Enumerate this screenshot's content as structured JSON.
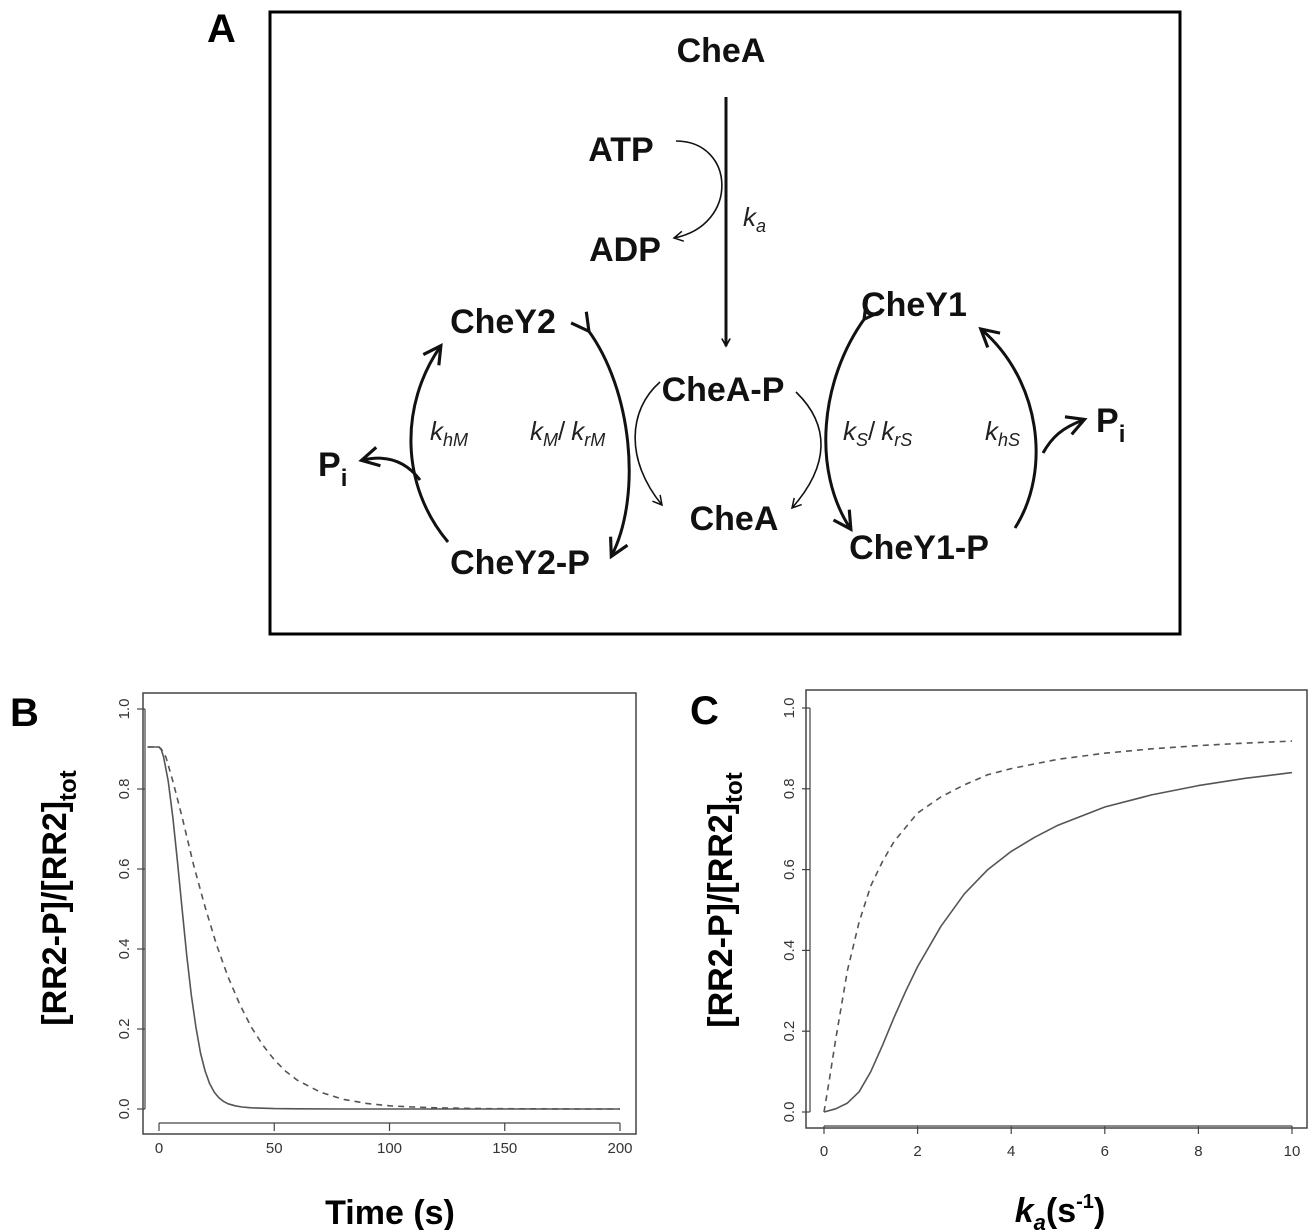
{
  "panel_a": {
    "letter": "A",
    "nodes": {
      "chea_top": "CheA",
      "atp": "ATP",
      "adp": "ADP",
      "chea_p": "CheA-P",
      "chea_mid": "CheA",
      "chey2": "CheY2",
      "chey2_p": "CheY2-P",
      "chey1": "CheY1",
      "chey1_p": "CheY1-P",
      "pi_left": "P",
      "pi_left_sub": "i",
      "pi_right": "P",
      "pi_right_sub": "i"
    },
    "rates": {
      "ka": "k",
      "ka_sub": "a",
      "khM": "k",
      "khM_sub": "hM",
      "kM": "k",
      "kM_sub": "M",
      "krM": "k",
      "krM_sub": "rM",
      "kS": "k",
      "kS_sub": "S",
      "krS": "k",
      "krS_sub": "rS",
      "khS": "k",
      "khS_sub": "hS",
      "slash": "/"
    }
  },
  "chart_data": [
    {
      "panel": "B",
      "type": "line",
      "xlabel": "Time (s)",
      "ylabel": "[RR2-P]/[RR2]",
      "ylabel_sub": "tot",
      "xlim": [
        0,
        200
      ],
      "ylim": [
        0,
        1.0
      ],
      "xticks": [
        "0",
        "50",
        "100",
        "150",
        "200"
      ],
      "yticks": [
        "0.0",
        "0.2",
        "0.4",
        "0.6",
        "0.8",
        "1.0"
      ],
      "series": [
        {
          "style": "solid",
          "x": [
            -5,
            0,
            1,
            2,
            4,
            6,
            8,
            10,
            12,
            14,
            16,
            18,
            20,
            22,
            24,
            26,
            28,
            30,
            33,
            36,
            40,
            45,
            50,
            60,
            80,
            100,
            150,
            200
          ],
          "y": [
            0.905,
            0.905,
            0.898,
            0.88,
            0.82,
            0.73,
            0.62,
            0.5,
            0.385,
            0.285,
            0.205,
            0.14,
            0.095,
            0.063,
            0.042,
            0.028,
            0.019,
            0.013,
            0.008,
            0.005,
            0.003,
            0.002,
            0.001,
            0.0005,
            0.0,
            0.0,
            0.0,
            0.0
          ]
        },
        {
          "style": "dashed",
          "x": [
            -5,
            0,
            1,
            3,
            6,
            10,
            15,
            20,
            25,
            30,
            35,
            40,
            45,
            50,
            55,
            60,
            70,
            80,
            90,
            100,
            110,
            120,
            140,
            160,
            180,
            200
          ],
          "y": [
            0.905,
            0.905,
            0.9,
            0.88,
            0.82,
            0.73,
            0.61,
            0.505,
            0.41,
            0.33,
            0.262,
            0.205,
            0.16,
            0.123,
            0.094,
            0.072,
            0.042,
            0.024,
            0.014,
            0.008,
            0.005,
            0.003,
            0.001,
            0.0005,
            0.0,
            0.0
          ]
        }
      ]
    },
    {
      "panel": "C",
      "type": "line",
      "xlabel": "k",
      "xlabel_sub": "a",
      "xlabel_rest": "(s",
      "xlabel_sup": "-1",
      "xlabel_end": ")",
      "ylabel": "[RR2-P]/[RR2]",
      "ylabel_sub": "tot",
      "xlim": [
        0,
        10
      ],
      "ylim": [
        0,
        1.0
      ],
      "xticks": [
        "0",
        "2",
        "4",
        "6",
        "8",
        "10"
      ],
      "yticks": [
        "0.0",
        "0.2",
        "0.4",
        "0.6",
        "0.8",
        "1.0"
      ],
      "series": [
        {
          "style": "solid",
          "x": [
            0,
            0.25,
            0.5,
            0.75,
            1.0,
            1.25,
            1.5,
            1.75,
            2.0,
            2.5,
            3.0,
            3.5,
            4.0,
            4.5,
            5.0,
            6.0,
            7.0,
            8.0,
            9.0,
            10.0
          ],
          "y": [
            0.0,
            0.008,
            0.022,
            0.05,
            0.1,
            0.165,
            0.235,
            0.3,
            0.36,
            0.46,
            0.54,
            0.6,
            0.645,
            0.68,
            0.71,
            0.755,
            0.785,
            0.808,
            0.826,
            0.84
          ]
        },
        {
          "style": "dashed",
          "x": [
            0,
            0.1,
            0.25,
            0.5,
            0.75,
            1.0,
            1.25,
            1.5,
            2.0,
            2.5,
            3.0,
            3.5,
            4.0,
            5.0,
            6.0,
            7.0,
            8.0,
            9.0,
            10.0
          ],
          "y": [
            0.0,
            0.07,
            0.18,
            0.35,
            0.47,
            0.56,
            0.62,
            0.67,
            0.74,
            0.78,
            0.81,
            0.835,
            0.85,
            0.873,
            0.888,
            0.899,
            0.907,
            0.913,
            0.918
          ]
        }
      ]
    }
  ]
}
